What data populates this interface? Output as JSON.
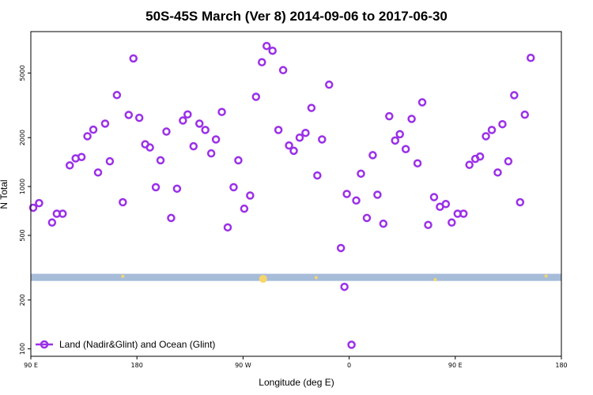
{
  "chart_data": {
    "type": "scatter",
    "title": "50S-45S March (Ver 8)   2014-09-06 to 2017-06-30",
    "xlabel": "Longitude (deg E)",
    "ylabel": "N Total",
    "x_ticks": [
      {
        "value": 90,
        "label": "90 E"
      },
      {
        "value": 180,
        "label": "180"
      },
      {
        "value": 270,
        "label": "90 W"
      },
      {
        "value": 360,
        "label": "0"
      },
      {
        "value": 450,
        "label": "90 E"
      },
      {
        "value": 540,
        "label": "180"
      }
    ],
    "y_ticks": [
      {
        "value": 100,
        "label": "100"
      },
      {
        "value": 200,
        "label": "200"
      },
      {
        "value": 500,
        "label": "500"
      },
      {
        "value": 1000,
        "label": "1000"
      },
      {
        "value": 2000,
        "label": "2000"
      },
      {
        "value": 5000,
        "label": "5000"
      }
    ],
    "xlim": [
      90,
      540
    ],
    "ylim": [
      90,
      9000
    ],
    "y_scale": "log",
    "grid": false,
    "legend_position": "bottom-left",
    "colors": {
      "series": "#9b30e8",
      "band": "#a6bcd9",
      "band_dots": "#f5d66b"
    },
    "band": {
      "y_low": 262,
      "y_high": 290
    },
    "band_dots": [
      {
        "x": 168,
        "y": 280,
        "size": "small"
      },
      {
        "x": 287,
        "y": 270,
        "size": "large"
      },
      {
        "x": 332,
        "y": 275,
        "size": "small"
      },
      {
        "x": 433,
        "y": 267,
        "size": "small"
      },
      {
        "x": 527,
        "y": 281,
        "size": "small"
      }
    ],
    "series": [
      {
        "name": "Land (Nadir&Glint) and Ocean (Glint)",
        "points": [
          {
            "x": 92,
            "y": 740
          },
          {
            "x": 97,
            "y": 790
          },
          {
            "x": 108,
            "y": 600
          },
          {
            "x": 112,
            "y": 680
          },
          {
            "x": 117,
            "y": 680
          },
          {
            "x": 123,
            "y": 1350
          },
          {
            "x": 128,
            "y": 1490
          },
          {
            "x": 133,
            "y": 1520
          },
          {
            "x": 138,
            "y": 2040
          },
          {
            "x": 143,
            "y": 2240
          },
          {
            "x": 147,
            "y": 1220
          },
          {
            "x": 153,
            "y": 2440
          },
          {
            "x": 157,
            "y": 1430
          },
          {
            "x": 163,
            "y": 3660
          },
          {
            "x": 168,
            "y": 800
          },
          {
            "x": 173,
            "y": 2760
          },
          {
            "x": 177,
            "y": 6150
          },
          {
            "x": 182,
            "y": 2650
          },
          {
            "x": 187,
            "y": 1820
          },
          {
            "x": 191,
            "y": 1740
          },
          {
            "x": 196,
            "y": 990
          },
          {
            "x": 200,
            "y": 1450
          },
          {
            "x": 205,
            "y": 2180
          },
          {
            "x": 209,
            "y": 640
          },
          {
            "x": 214,
            "y": 970
          },
          {
            "x": 219,
            "y": 2550
          },
          {
            "x": 223,
            "y": 2780
          },
          {
            "x": 228,
            "y": 1770
          },
          {
            "x": 233,
            "y": 2440
          },
          {
            "x": 238,
            "y": 2230
          },
          {
            "x": 243,
            "y": 1600
          },
          {
            "x": 247,
            "y": 1950
          },
          {
            "x": 252,
            "y": 2880
          },
          {
            "x": 257,
            "y": 560
          },
          {
            "x": 262,
            "y": 990
          },
          {
            "x": 266,
            "y": 1450
          },
          {
            "x": 271,
            "y": 730
          },
          {
            "x": 276,
            "y": 880
          },
          {
            "x": 281,
            "y": 3570
          },
          {
            "x": 286,
            "y": 5830
          },
          {
            "x": 290,
            "y": 7340
          },
          {
            "x": 295,
            "y": 6860
          },
          {
            "x": 300,
            "y": 2230
          },
          {
            "x": 304,
            "y": 5210
          },
          {
            "x": 309,
            "y": 1790
          },
          {
            "x": 313,
            "y": 1660
          },
          {
            "x": 318,
            "y": 2000
          },
          {
            "x": 323,
            "y": 2140
          },
          {
            "x": 328,
            "y": 3050
          },
          {
            "x": 333,
            "y": 1170
          },
          {
            "x": 337,
            "y": 1950
          },
          {
            "x": 343,
            "y": 4240
          },
          {
            "x": 356,
            "y": 241
          },
          {
            "x": 353,
            "y": 418
          },
          {
            "x": 358,
            "y": 900
          },
          {
            "x": 362,
            "y": 106
          },
          {
            "x": 366,
            "y": 820
          },
          {
            "x": 370,
            "y": 1200
          },
          {
            "x": 375,
            "y": 640
          },
          {
            "x": 380,
            "y": 1560
          },
          {
            "x": 384,
            "y": 890
          },
          {
            "x": 389,
            "y": 590
          },
          {
            "x": 394,
            "y": 2710
          },
          {
            "x": 399,
            "y": 1920
          },
          {
            "x": 403,
            "y": 2100
          },
          {
            "x": 408,
            "y": 1700
          },
          {
            "x": 413,
            "y": 2610
          },
          {
            "x": 418,
            "y": 1390
          },
          {
            "x": 422,
            "y": 3300
          },
          {
            "x": 427,
            "y": 580
          },
          {
            "x": 432,
            "y": 860
          },
          {
            "x": 437,
            "y": 750
          },
          {
            "x": 442,
            "y": 780
          },
          {
            "x": 447,
            "y": 600
          },
          {
            "x": 452,
            "y": 680
          },
          {
            "x": 457,
            "y": 680
          },
          {
            "x": 462,
            "y": 1360
          },
          {
            "x": 467,
            "y": 1480
          },
          {
            "x": 471,
            "y": 1530
          },
          {
            "x": 476,
            "y": 2040
          },
          {
            "x": 481,
            "y": 2230
          },
          {
            "x": 486,
            "y": 1220
          },
          {
            "x": 490,
            "y": 2420
          },
          {
            "x": 495,
            "y": 1430
          },
          {
            "x": 500,
            "y": 3650
          },
          {
            "x": 505,
            "y": 800
          },
          {
            "x": 509,
            "y": 2770
          },
          {
            "x": 514,
            "y": 6200
          }
        ]
      }
    ]
  }
}
